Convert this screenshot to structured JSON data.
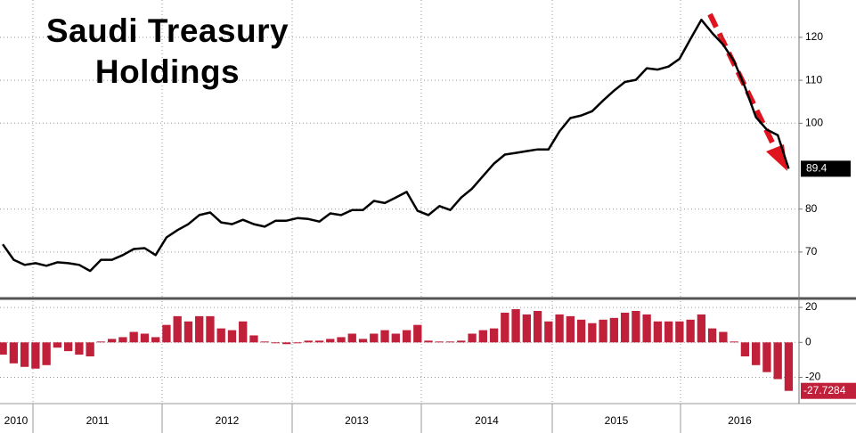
{
  "chart_data": [
    {
      "type": "line",
      "title": "Saudi Treasury Holdings",
      "color": "#000000",
      "categories": [
        null,
        null,
        null,
        null,
        null,
        null,
        null,
        null,
        null,
        null,
        null,
        null,
        null,
        null,
        null,
        null,
        null,
        null,
        null,
        null,
        null,
        null,
        null,
        null,
        null,
        null,
        null,
        null,
        null,
        null,
        null,
        null,
        null,
        null,
        null,
        null,
        null,
        null,
        null,
        null,
        null,
        null,
        null,
        null,
        null,
        null,
        null,
        null,
        null,
        null,
        null,
        null,
        null,
        null,
        null,
        null,
        null,
        null,
        null,
        null,
        null,
        null,
        null,
        null,
        null,
        null,
        null,
        null,
        null,
        null,
        null,
        null,
        null
      ],
      "values": [
        71.8,
        68.2,
        67.0,
        67.4,
        66.8,
        67.6,
        67.4,
        67.0,
        65.6,
        68.2,
        68.2,
        69.3,
        70.7,
        70.9,
        69.3,
        73.4,
        75.1,
        76.5,
        78.6,
        79.2,
        76.9,
        76.5,
        77.5,
        76.5,
        75.9,
        77.3,
        77.3,
        77.9,
        77.7,
        77.1,
        79.0,
        78.6,
        79.8,
        79.8,
        81.9,
        81.4,
        82.7,
        84.0,
        79.6,
        78.6,
        80.7,
        79.8,
        82.7,
        84.8,
        87.7,
        90.6,
        92.7,
        93.1,
        93.5,
        93.9,
        93.9,
        98.1,
        101.2,
        101.8,
        102.8,
        105.3,
        107.6,
        109.6,
        110.1,
        112.8,
        112.5,
        113.2,
        115.0,
        119.6,
        124.1,
        121.0,
        118.3,
        114.4,
        108.4,
        101.4,
        98.5,
        97.2,
        89.4
      ],
      "ylim": [
        59.6,
        128.7
      ],
      "yticks": [
        70,
        80,
        100,
        110,
        120
      ],
      "grid": true
    },
    {
      "type": "bar",
      "color": "#c0203a",
      "x_labels": [
        "2010",
        "2011",
        "2012",
        "2013",
        "2014",
        "2015",
        "2016"
      ],
      "values": [
        -7,
        -12,
        -14,
        -15,
        -13,
        -3,
        -5,
        -7,
        -8,
        0.5,
        2,
        3,
        6,
        5,
        3,
        10,
        15,
        12,
        15,
        15,
        8,
        7,
        12,
        4,
        0.5,
        -0.5,
        -1,
        -0.5,
        1,
        1,
        2,
        3,
        5,
        2,
        5,
        7,
        5,
        7,
        10,
        1,
        0.5,
        0.5,
        1,
        5,
        7,
        8,
        17,
        19,
        16,
        18,
        12,
        16,
        15,
        13,
        11,
        13,
        14,
        17,
        18,
        16,
        12,
        12,
        12,
        13,
        16,
        8,
        6,
        0.5,
        -8,
        -13,
        -17,
        -21,
        -27.7284
      ],
      "ylim": [
        -34.5,
        23.6
      ],
      "yticks": [
        -20,
        0,
        20
      ],
      "grid": true
    }
  ]
}
